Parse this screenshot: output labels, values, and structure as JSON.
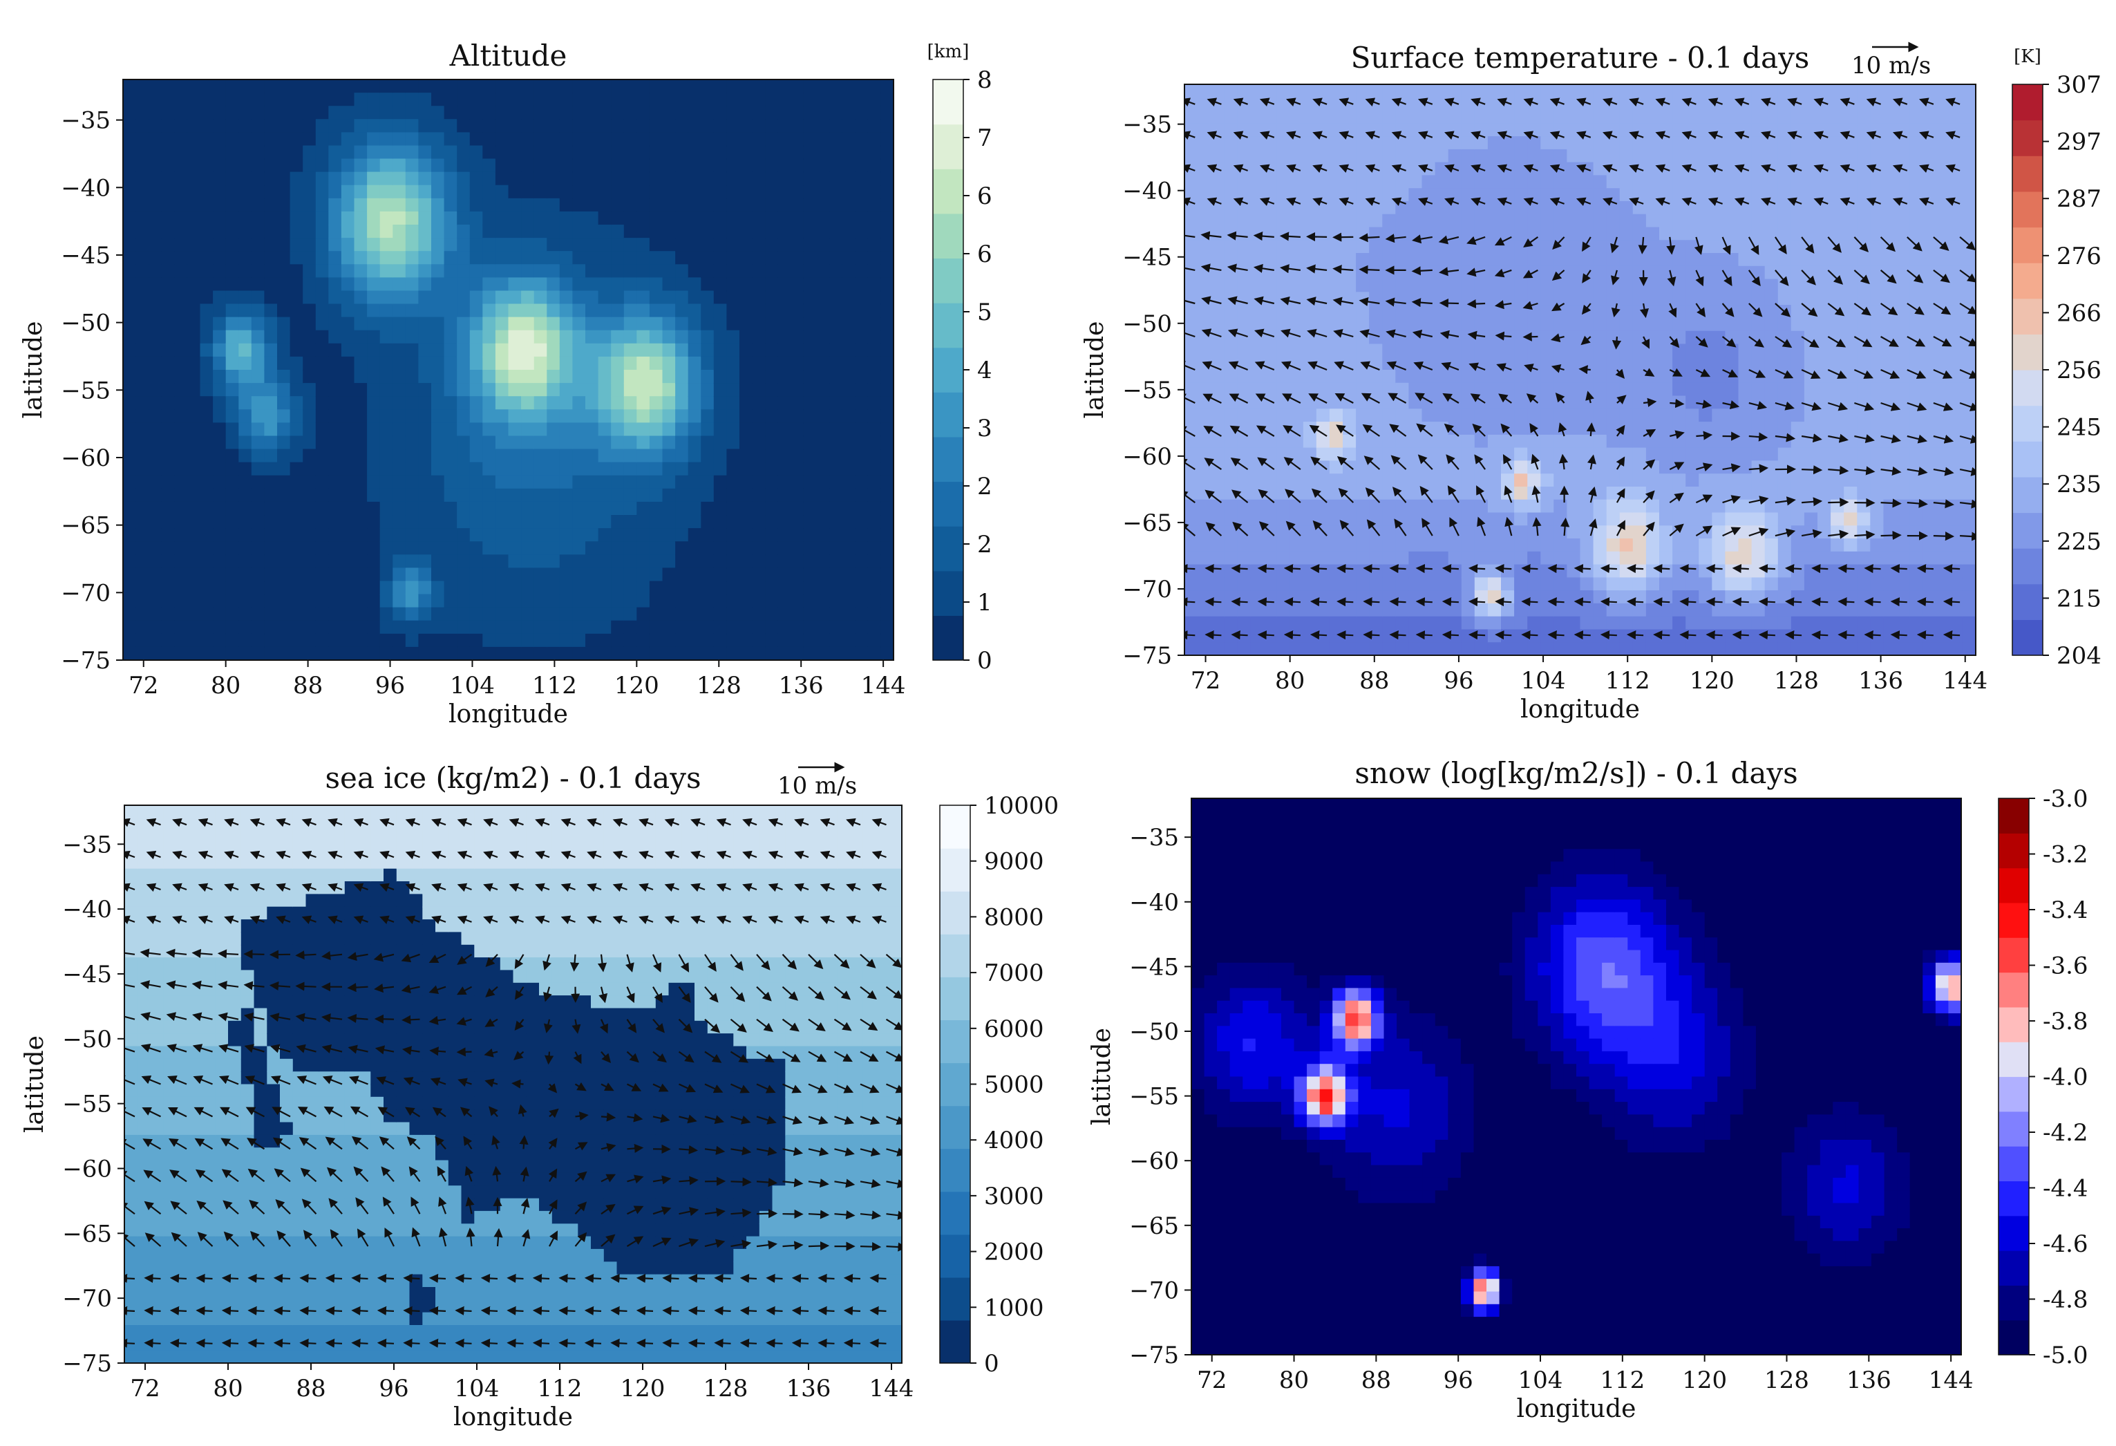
{
  "chart_data": [
    {
      "type": "heatmap",
      "title": "Altitude",
      "xlabel": "longitude",
      "ylabel": "latitude",
      "xlim": [
        70,
        145
      ],
      "ylim": [
        -75,
        -32
      ],
      "xticks": [
        "72",
        "80",
        "88",
        "96",
        "104",
        "112",
        "120",
        "128",
        "136",
        "144"
      ],
      "yticks": [
        "-35",
        "-40",
        "-45",
        "-50",
        "-55",
        "-60",
        "-65",
        "-70",
        "-75"
      ],
      "vectors": false,
      "colorbar": {
        "unit": "[km]",
        "vmin": 0,
        "vmax": 8,
        "ticks": [
          "0",
          "1",
          "2",
          "2",
          "3",
          "4",
          "5",
          "6",
          "6",
          "7",
          "8"
        ],
        "colors": [
          "#08306b",
          "#0b4a87",
          "#115d9a",
          "#1b6dab",
          "#2a81b9",
          "#3a95c3",
          "#4ea9ca",
          "#66bbc9",
          "#80cbc4",
          "#a0d9bd",
          "#c2e6c0",
          "#deefd6",
          "#f2f9ee"
        ]
      },
      "background_value": 0.3,
      "blobs": [
        {
          "lon": 96,
          "lat": -42.5,
          "peak": 6.2,
          "spread": 4
        },
        {
          "lon": 109,
          "lat": -52,
          "peak": 6.0,
          "spread": 3.5
        },
        {
          "lon": 121,
          "lat": -54.5,
          "peak": 6.0,
          "spread": 3.5
        },
        {
          "lon": 81.5,
          "lat": -52,
          "peak": 4.5,
          "spread": 2
        },
        {
          "lon": 84,
          "lat": -57,
          "peak": 3.5,
          "spread": 2
        },
        {
          "lon": 98,
          "lat": -70,
          "peak": 3.2,
          "spread": 1.5
        },
        {
          "lon": 110,
          "lat": -58,
          "peak": 2.0,
          "spread": 9
        }
      ]
    },
    {
      "type": "heatmap",
      "title": "Surface temperature - 0.1 days",
      "xlabel": "longitude",
      "ylabel": "latitude",
      "xlim": [
        70,
        145
      ],
      "ylim": [
        -75,
        -32
      ],
      "xticks": [
        "72",
        "80",
        "88",
        "96",
        "104",
        "112",
        "120",
        "128",
        "136",
        "144"
      ],
      "yticks": [
        "-35",
        "-40",
        "-45",
        "-50",
        "-55",
        "-60",
        "-65",
        "-70",
        "-75"
      ],
      "vectors": true,
      "reference_vector": "10 m/s",
      "colorbar": {
        "unit": "[K]",
        "vmin": 204,
        "vmax": 307,
        "ticks": [
          "204",
          "215",
          "225",
          "235",
          "245",
          "256",
          "266",
          "276",
          "287",
          "297",
          "307"
        ],
        "colors": [
          "#4658c8",
          "#5a6fd5",
          "#6d84df",
          "#8199e8",
          "#95aeef",
          "#a9c1f5",
          "#bdd0f6",
          "#d2daf1",
          "#e2d4cc",
          "#efc1ae",
          "#f4ab8e",
          "#ee9173",
          "#e2745b",
          "#d05546",
          "#b93235",
          "#b01c2e"
        ]
      },
      "background_value": 230,
      "blobs": [
        {
          "lon": 112,
          "lat": -67,
          "peak": 268,
          "spread": 2.5
        },
        {
          "lon": 99,
          "lat": -70.5,
          "peak": 270,
          "spread": 1.3
        },
        {
          "lon": 84,
          "lat": -58.5,
          "peak": 262,
          "spread": 1.2
        },
        {
          "lon": 102,
          "lat": -62,
          "peak": 262,
          "spread": 1.3
        },
        {
          "lon": 133,
          "lat": -65,
          "peak": 262,
          "spread": 1.3
        },
        {
          "lon": 123,
          "lat": -67.5,
          "peak": 266,
          "spread": 2.5
        },
        {
          "lon": 101,
          "lat": -45,
          "peak": 222,
          "spread": 9
        },
        {
          "lon": 120,
          "lat": -54,
          "peak": 220,
          "spread": 5
        }
      ]
    },
    {
      "type": "heatmap",
      "title": "sea ice (kg/m2) - 0.1 days",
      "xlabel": "longitude",
      "ylabel": "latitude",
      "xlim": [
        70,
        145
      ],
      "ylim": [
        -75,
        -32
      ],
      "xticks": [
        "72",
        "80",
        "88",
        "96",
        "104",
        "112",
        "120",
        "128",
        "136",
        "144"
      ],
      "yticks": [
        "-35",
        "-40",
        "-45",
        "-50",
        "-55",
        "-60",
        "-65",
        "-70",
        "-75"
      ],
      "vectors": true,
      "reference_vector": "10 m/s",
      "colorbar": {
        "vmin": 0,
        "vmax": 10000,
        "ticks": [
          "0",
          "1000",
          "2000",
          "3000",
          "4000",
          "5000",
          "6000",
          "7000",
          "8000",
          "9000",
          "10000"
        ],
        "colors": [
          "#08306b",
          "#0d4d8c",
          "#1763a7",
          "#2575b7",
          "#3787c0",
          "#4b98c8",
          "#60a8d0",
          "#79b8d9",
          "#95c8e0",
          "#b2d5e9",
          "#cde1f1",
          "#e5eff9",
          "#f7fbff"
        ]
      },
      "background_value": 6000,
      "blobs": [
        {
          "lon": 110,
          "lat": -52,
          "peak": 0,
          "spread": 0
        }
      ]
    },
    {
      "type": "heatmap",
      "title": "snow (log[kg/m2/s]) - 0.1 days",
      "xlabel": "longitude",
      "ylabel": "latitude",
      "xlim": [
        70,
        145
      ],
      "ylim": [
        -75,
        -32
      ],
      "xticks": [
        "72",
        "80",
        "88",
        "96",
        "104",
        "112",
        "120",
        "128",
        "136",
        "144"
      ],
      "yticks": [
        "-35",
        "-40",
        "-45",
        "-50",
        "-55",
        "-60",
        "-65",
        "-70",
        "-75"
      ],
      "vectors": false,
      "colorbar": {
        "vmin": -5.0,
        "vmax": -3.0,
        "ticks": [
          "-5.0",
          "-4.8",
          "-4.6",
          "-4.4",
          "-4.2",
          "-4.0",
          "-3.8",
          "-3.6",
          "-3.4",
          "-3.2",
          "-3.0"
        ],
        "colors": [
          "#000060",
          "#00007f",
          "#0000b0",
          "#0000e0",
          "#2020ff",
          "#5050ff",
          "#8080ff",
          "#b0b0ff",
          "#e0e0f5",
          "#ffbcbc",
          "#ff8080",
          "#ff4040",
          "#ff1010",
          "#e00000",
          "#b40000",
          "#880000"
        ]
      },
      "background_value": -5.0,
      "blobs": [
        {
          "lon": 86,
          "lat": -49,
          "peak": -3.6,
          "spread": 1.6
        },
        {
          "lon": 83,
          "lat": -55,
          "peak": -3.6,
          "spread": 1.6
        },
        {
          "lon": 98.5,
          "lat": -70,
          "peak": -3.5,
          "spread": 1.1
        },
        {
          "lon": 144,
          "lat": -46.5,
          "peak": -3.7,
          "spread": 1.5
        },
        {
          "lon": 110,
          "lat": -45,
          "peak": -4.3,
          "spread": 5
        },
        {
          "lon": 76,
          "lat": -51,
          "peak": -4.5,
          "spread": 4
        },
        {
          "lon": 117,
          "lat": -52,
          "peak": -4.6,
          "spread": 5
        },
        {
          "lon": 134,
          "lat": -62,
          "peak": -4.6,
          "spread": 4
        },
        {
          "lon": 90,
          "lat": -56,
          "peak": -4.6,
          "spread": 5
        }
      ]
    }
  ]
}
